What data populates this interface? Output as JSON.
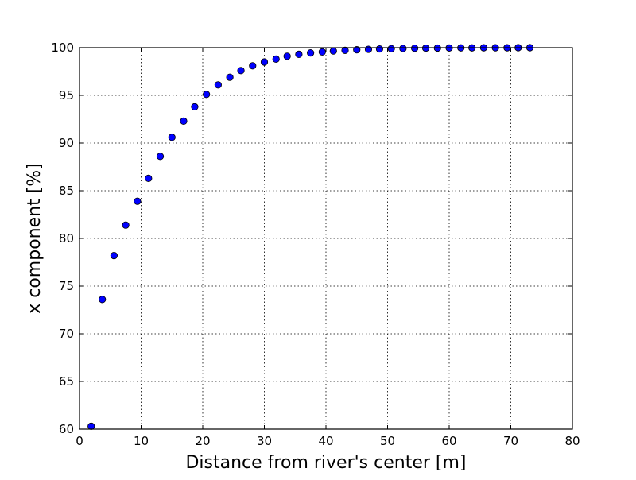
{
  "chart_data": {
    "type": "scatter",
    "title": "",
    "xlabel": "Distance from river's center [m]",
    "ylabel": "x component [%]",
    "xlim": [
      0,
      80
    ],
    "ylim": [
      60,
      100
    ],
    "xticks": [
      0,
      10,
      20,
      30,
      40,
      50,
      60,
      70,
      80
    ],
    "yticks": [
      60,
      65,
      70,
      75,
      80,
      85,
      90,
      95,
      100
    ],
    "grid": true,
    "marker_color": "#0000ff",
    "series": [
      {
        "x": [
          1.9,
          3.7,
          5.6,
          7.5,
          9.4,
          11.2,
          13.1,
          15.0,
          16.9,
          18.7,
          20.6,
          22.5,
          24.4,
          26.2,
          28.1,
          30.0,
          31.9,
          33.7,
          35.6,
          37.5,
          39.4,
          41.2,
          43.1,
          45.0,
          46.9,
          48.7,
          50.6,
          52.5,
          54.4,
          56.2,
          58.1,
          60.0,
          61.9,
          63.7,
          65.6,
          67.5,
          69.4,
          71.2,
          73.1
        ],
        "y": [
          60.3,
          73.6,
          78.2,
          81.4,
          83.9,
          86.3,
          88.6,
          90.6,
          92.3,
          93.8,
          95.1,
          96.1,
          96.9,
          97.6,
          98.1,
          98.5,
          98.8,
          99.1,
          99.3,
          99.45,
          99.55,
          99.65,
          99.72,
          99.78,
          99.83,
          99.87,
          99.9,
          99.92,
          99.94,
          99.95,
          99.96,
          99.97,
          99.98,
          99.98,
          99.99,
          99.99,
          99.99,
          100.0,
          100.0
        ]
      }
    ]
  }
}
